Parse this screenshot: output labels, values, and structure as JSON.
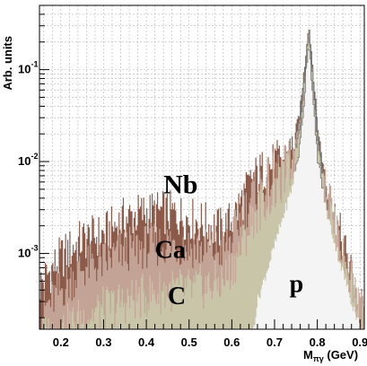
{
  "chart_data": {
    "type": "area",
    "ylabel": "Arb. units",
    "xlabel_main": "M",
    "xlabel_sub": "πγ",
    "xlabel_unit": " (GeV)",
    "xlim": [
      0.15,
      0.91
    ],
    "ylim": [
      0.00015,
      0.5
    ],
    "y_scale": "log",
    "grid": true,
    "x_ticks": [
      "0.2",
      "0.3",
      "0.4",
      "0.5",
      "0.6",
      "0.7",
      "0.8",
      "0.9"
    ],
    "x_tick_values": [
      0.2,
      0.3,
      0.4,
      0.5,
      0.6,
      0.7,
      0.8,
      0.9
    ],
    "y_ticks": [
      {
        "base": "10",
        "exp": "-3",
        "value": 0.001
      },
      {
        "base": "10",
        "exp": "-2",
        "value": 0.01
      },
      {
        "base": "10",
        "exp": "-1",
        "value": 0.1
      }
    ],
    "series": [
      {
        "name": "Nb",
        "color": "#8b5a49",
        "points": [
          [
            0.15,
            0.00045
          ],
          [
            0.2,
            0.0009
          ],
          [
            0.25,
            0.0014
          ],
          [
            0.3,
            0.0016
          ],
          [
            0.35,
            0.0024
          ],
          [
            0.4,
            0.0028
          ],
          [
            0.45,
            0.0028
          ],
          [
            0.5,
            0.0024
          ],
          [
            0.55,
            0.002
          ],
          [
            0.58,
            0.0018
          ],
          [
            0.6,
            0.0023
          ],
          [
            0.62,
            0.0035
          ],
          [
            0.65,
            0.0065
          ],
          [
            0.68,
            0.0085
          ],
          [
            0.7,
            0.0095
          ],
          [
            0.72,
            0.0105
          ],
          [
            0.74,
            0.013
          ],
          [
            0.76,
            0.035
          ],
          [
            0.77,
            0.1
          ],
          [
            0.78,
            0.31
          ],
          [
            0.79,
            0.1
          ],
          [
            0.8,
            0.025
          ],
          [
            0.82,
            0.0055
          ],
          [
            0.85,
            0.0018
          ],
          [
            0.88,
            0.0006
          ],
          [
            0.91,
            0.0002
          ]
        ]
      },
      {
        "name": "Ca",
        "color": "#c4a397",
        "points": [
          [
            0.15,
            0.00022
          ],
          [
            0.2,
            0.0004
          ],
          [
            0.25,
            0.0007
          ],
          [
            0.3,
            0.0008
          ],
          [
            0.35,
            0.0011
          ],
          [
            0.4,
            0.0012
          ],
          [
            0.45,
            0.0013
          ],
          [
            0.5,
            0.0012
          ],
          [
            0.55,
            0.0011
          ],
          [
            0.58,
            0.0011
          ],
          [
            0.6,
            0.0015
          ],
          [
            0.62,
            0.0024
          ],
          [
            0.65,
            0.0045
          ],
          [
            0.68,
            0.0062
          ],
          [
            0.7,
            0.0072
          ],
          [
            0.72,
            0.0085
          ],
          [
            0.74,
            0.011
          ],
          [
            0.76,
            0.03
          ],
          [
            0.77,
            0.09
          ],
          [
            0.78,
            0.29
          ],
          [
            0.79,
            0.09
          ],
          [
            0.8,
            0.022
          ],
          [
            0.82,
            0.0048
          ],
          [
            0.85,
            0.0015
          ],
          [
            0.88,
            0.0005
          ],
          [
            0.91,
            0.00018
          ]
        ]
      },
      {
        "name": "C",
        "color": "#c9c5a9",
        "points": [
          [
            0.15,
            0.00012
          ],
          [
            0.2,
            0.00015
          ],
          [
            0.25,
            0.0002
          ],
          [
            0.3,
            0.00025
          ],
          [
            0.35,
            0.0003
          ],
          [
            0.4,
            0.00035
          ],
          [
            0.45,
            0.0004
          ],
          [
            0.5,
            0.0004
          ],
          [
            0.55,
            0.00045
          ],
          [
            0.58,
            0.0005
          ],
          [
            0.6,
            0.0007
          ],
          [
            0.62,
            0.0011
          ],
          [
            0.65,
            0.0025
          ],
          [
            0.68,
            0.0038
          ],
          [
            0.7,
            0.0048
          ],
          [
            0.72,
            0.0062
          ],
          [
            0.74,
            0.0085
          ],
          [
            0.76,
            0.025
          ],
          [
            0.77,
            0.08
          ],
          [
            0.78,
            0.26
          ],
          [
            0.79,
            0.08
          ],
          [
            0.8,
            0.02
          ],
          [
            0.82,
            0.0042
          ],
          [
            0.85,
            0.0013
          ],
          [
            0.88,
            0.00045
          ],
          [
            0.91,
            0.00016
          ]
        ]
      },
      {
        "name": "p",
        "color": "#f4f4f4",
        "points": [
          [
            0.645,
            0.0001
          ],
          [
            0.66,
            0.0003
          ],
          [
            0.68,
            0.0006
          ],
          [
            0.7,
            0.0012
          ],
          [
            0.72,
            0.0025
          ],
          [
            0.74,
            0.005
          ],
          [
            0.76,
            0.015
          ],
          [
            0.77,
            0.05
          ],
          [
            0.775,
            0.12
          ],
          [
            0.78,
            0.2
          ],
          [
            0.785,
            0.11
          ],
          [
            0.79,
            0.045
          ],
          [
            0.8,
            0.012
          ],
          [
            0.82,
            0.003
          ],
          [
            0.85,
            0.0009
          ],
          [
            0.88,
            0.0003
          ],
          [
            0.91,
            0.00012
          ]
        ]
      }
    ],
    "labels": [
      {
        "text": "Nb",
        "x": 0.44,
        "y": 0.0045
      },
      {
        "text": "Ca",
        "x": 0.42,
        "y": 0.0009
      },
      {
        "text": "C",
        "x": 0.45,
        "y": 0.00028
      },
      {
        "text": "p",
        "x": 0.735,
        "y": 0.00038
      }
    ]
  }
}
